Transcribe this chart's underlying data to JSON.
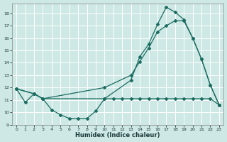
{
  "xlabel": "Humidex (Indice chaleur)",
  "bg_color": "#cde8e5",
  "grid_color": "#ffffff",
  "line_color": "#1a6b60",
  "line1_x": [
    0,
    1,
    2,
    3,
    4,
    5,
    6,
    7,
    8,
    9,
    10,
    11,
    12,
    13,
    14,
    15,
    16,
    17,
    18,
    19,
    20,
    21,
    22,
    23
  ],
  "line1_y": [
    11.9,
    10.8,
    11.5,
    11.1,
    10.2,
    9.8,
    9.5,
    9.5,
    9.5,
    10.1,
    11.1,
    11.1,
    11.1,
    11.1,
    11.1,
    11.1,
    11.1,
    11.1,
    11.1,
    11.1,
    11.1,
    11.1,
    11.1,
    10.6
  ],
  "line2_x": [
    0,
    2,
    3,
    10,
    13,
    14,
    15,
    16,
    17,
    18,
    19,
    20,
    21,
    22,
    23
  ],
  "line2_y": [
    11.9,
    11.5,
    11.1,
    12.0,
    13.0,
    14.1,
    15.2,
    16.5,
    17.0,
    17.4,
    17.4,
    16.0,
    14.3,
    12.2,
    10.6
  ],
  "line3_x": [
    0,
    2,
    3,
    10,
    13,
    14,
    15,
    16,
    17,
    18,
    19,
    20,
    21,
    22,
    23
  ],
  "line3_y": [
    11.9,
    11.5,
    11.1,
    11.1,
    12.6,
    14.5,
    15.5,
    17.1,
    18.5,
    18.1,
    17.5,
    16.0,
    14.3,
    12.2,
    10.6
  ],
  "ylim": [
    9,
    18.8
  ],
  "xlim": [
    -0.5,
    23.5
  ],
  "yticks": [
    9,
    10,
    11,
    12,
    13,
    14,
    15,
    16,
    17,
    18
  ],
  "xticks": [
    0,
    1,
    2,
    3,
    4,
    5,
    6,
    7,
    8,
    9,
    10,
    11,
    12,
    13,
    14,
    15,
    16,
    17,
    18,
    19,
    20,
    21,
    22,
    23
  ]
}
